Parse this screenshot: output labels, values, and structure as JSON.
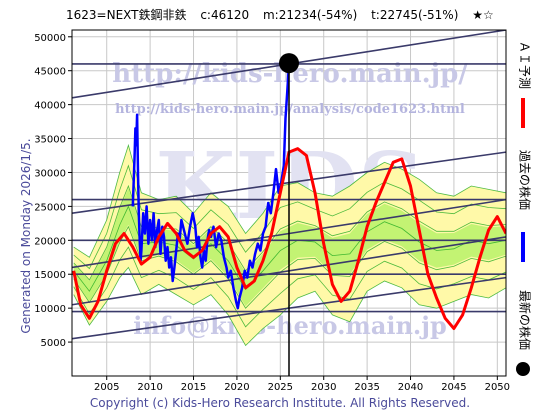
{
  "header": {
    "code_name": "1623=NEXT鉄鋼非鉄",
    "c": "c:46120",
    "m": "m:21234(-54%)",
    "t": "t:22745(-51%)",
    "stars": "★☆"
  },
  "side_label": "Generated on Monday 2026/1/5.",
  "footer": "Copyright (c) Kids-Hero Research Institute. All Rights Reserved.",
  "watermarks": {
    "top": "http://kids-hero.main.jp/",
    "analysis": "http://kids-hero.main.jp/analysis/code1623.html",
    "center": "KIDS",
    "email": "info@kids-hero.main.jp"
  },
  "legend": [
    {
      "label": "ＡＩ予測",
      "color": "#ff0000"
    },
    {
      "label": "過去の株価",
      "color": "#0000ff"
    },
    {
      "label": "最新の株価",
      "color": "#000000"
    }
  ],
  "colors": {
    "ai": "#ff0000",
    "past": "#0000ff",
    "latest": "#000000",
    "band_fill_green": "#b8f26a",
    "band_fill_yellow": "#fff9a8",
    "band_line": "#22aa22",
    "channel": "#3a3a6a"
  },
  "chart_data": {
    "type": "line",
    "xlim": [
      2001,
      2051
    ],
    "ylim": [
      0,
      51000
    ],
    "x_ticks": [
      2005,
      2010,
      2015,
      2020,
      2025,
      2030,
      2035,
      2040,
      2045,
      2050
    ],
    "y_ticks": [
      5000,
      10000,
      15000,
      20000,
      25000,
      30000,
      35000,
      40000,
      45000,
      50000
    ],
    "grid": true,
    "latest_point": {
      "x": 2026.0,
      "y": 46120
    },
    "past_price": [
      [
        2008.0,
        25000
      ],
      [
        2008.2,
        32000
      ],
      [
        2008.3,
        36500
      ],
      [
        2008.4,
        34000
      ],
      [
        2008.5,
        38500
      ],
      [
        2008.6,
        30000
      ],
      [
        2008.7,
        24000
      ],
      [
        2008.8,
        20000
      ],
      [
        2008.9,
        17000
      ],
      [
        2009.0,
        18500
      ],
      [
        2009.2,
        24000
      ],
      [
        2009.4,
        21000
      ],
      [
        2009.6,
        25000
      ],
      [
        2009.8,
        19500
      ],
      [
        2010.0,
        23000
      ],
      [
        2010.2,
        20000
      ],
      [
        2010.4,
        24000
      ],
      [
        2010.6,
        19000
      ],
      [
        2010.8,
        21500
      ],
      [
        2011.0,
        23000
      ],
      [
        2011.2,
        18000
      ],
      [
        2011.4,
        22000
      ],
      [
        2011.6,
        20500
      ],
      [
        2011.8,
        17000
      ],
      [
        2012.0,
        19000
      ],
      [
        2012.2,
        16000
      ],
      [
        2012.4,
        17500
      ],
      [
        2012.6,
        14000
      ],
      [
        2012.8,
        16000
      ],
      [
        2013.0,
        18500
      ],
      [
        2013.2,
        21000
      ],
      [
        2013.4,
        20000
      ],
      [
        2013.6,
        23000
      ],
      [
        2013.8,
        22000
      ],
      [
        2014.0,
        21000
      ],
      [
        2014.3,
        19500
      ],
      [
        2014.6,
        22000
      ],
      [
        2014.9,
        24000
      ],
      [
        2015.2,
        22000
      ],
      [
        2015.4,
        19000
      ],
      [
        2015.6,
        20500
      ],
      [
        2015.8,
        17500
      ],
      [
        2016.0,
        16000
      ],
      [
        2016.2,
        18500
      ],
      [
        2016.4,
        17000
      ],
      [
        2016.6,
        20000
      ],
      [
        2016.8,
        21500
      ],
      [
        2017.0,
        20500
      ],
      [
        2017.3,
        22000
      ],
      [
        2017.6,
        19000
      ],
      [
        2017.9,
        21000
      ],
      [
        2018.2,
        20000
      ],
      [
        2018.5,
        17500
      ],
      [
        2018.8,
        16000
      ],
      [
        2019.0,
        14500
      ],
      [
        2019.3,
        15500
      ],
      [
        2019.6,
        13000
      ],
      [
        2019.9,
        11000
      ],
      [
        2020.1,
        10000
      ],
      [
        2020.3,
        11500
      ],
      [
        2020.6,
        13000
      ],
      [
        2020.9,
        15500
      ],
      [
        2021.2,
        14500
      ],
      [
        2021.5,
        17000
      ],
      [
        2021.8,
        16000
      ],
      [
        2022.1,
        18000
      ],
      [
        2022.4,
        19500
      ],
      [
        2022.7,
        18500
      ],
      [
        2023.0,
        21000
      ],
      [
        2023.3,
        22000
      ],
      [
        2023.6,
        25500
      ],
      [
        2023.9,
        24000
      ],
      [
        2024.2,
        27000
      ],
      [
        2024.5,
        30500
      ],
      [
        2024.8,
        27000
      ],
      [
        2025.1,
        28500
      ],
      [
        2025.4,
        31000
      ],
      [
        2025.6,
        38000
      ],
      [
        2025.8,
        42000
      ],
      [
        2026.0,
        46120
      ]
    ],
    "ai_forecast": [
      [
        2001.2,
        15500
      ],
      [
        2002.0,
        10500
      ],
      [
        2003.0,
        8500
      ],
      [
        2004.0,
        11000
      ],
      [
        2005.0,
        15500
      ],
      [
        2006.0,
        19500
      ],
      [
        2007.0,
        21000
      ],
      [
        2008.0,
        19000
      ],
      [
        2009.0,
        16500
      ],
      [
        2010.0,
        17500
      ],
      [
        2011.0,
        20500
      ],
      [
        2012.0,
        22500
      ],
      [
        2013.0,
        21000
      ],
      [
        2014.0,
        18500
      ],
      [
        2015.0,
        17500
      ],
      [
        2016.0,
        18500
      ],
      [
        2017.0,
        21000
      ],
      [
        2018.0,
        22000
      ],
      [
        2019.0,
        20500
      ],
      [
        2020.0,
        16000
      ],
      [
        2021.0,
        13000
      ],
      [
        2022.0,
        14000
      ],
      [
        2023.0,
        17000
      ],
      [
        2024.0,
        21000
      ],
      [
        2025.0,
        27000
      ],
      [
        2026.0,
        33000
      ],
      [
        2027.0,
        33500
      ],
      [
        2028.0,
        32500
      ],
      [
        2029.0,
        27000
      ],
      [
        2030.0,
        19500
      ],
      [
        2031.0,
        13500
      ],
      [
        2032.0,
        11000
      ],
      [
        2033.0,
        12500
      ],
      [
        2034.0,
        17000
      ],
      [
        2035.0,
        22000
      ],
      [
        2036.0,
        25500
      ],
      [
        2037.0,
        28500
      ],
      [
        2038.0,
        31500
      ],
      [
        2039.0,
        32000
      ],
      [
        2040.0,
        28000
      ],
      [
        2041.0,
        21500
      ],
      [
        2042.0,
        15000
      ],
      [
        2043.0,
        11500
      ],
      [
        2044.0,
        8500
      ],
      [
        2045.0,
        7000
      ],
      [
        2046.0,
        9000
      ],
      [
        2047.0,
        13000
      ],
      [
        2048.0,
        17500
      ],
      [
        2049.0,
        21500
      ],
      [
        2050.0,
        23500
      ],
      [
        2051.0,
        21000
      ]
    ],
    "band_upper": [
      [
        2001.2,
        19000
      ],
      [
        2003.0,
        17500
      ],
      [
        2005.0,
        23000
      ],
      [
        2006.5,
        30000
      ],
      [
        2007.5,
        34000
      ],
      [
        2009.0,
        27000
      ],
      [
        2011.0,
        26000
      ],
      [
        2013.0,
        26500
      ],
      [
        2015.0,
        24000
      ],
      [
        2017.0,
        27000
      ],
      [
        2019.0,
        25000
      ],
      [
        2021.0,
        21000
      ],
      [
        2023.0,
        24000
      ],
      [
        2025.0,
        28000
      ],
      [
        2027.0,
        28500
      ],
      [
        2029.0,
        27000
      ],
      [
        2031.0,
        26500
      ],
      [
        2033.0,
        28000
      ],
      [
        2035.0,
        30000
      ],
      [
        2037.0,
        31500
      ],
      [
        2039.0,
        30500
      ],
      [
        2041.0,
        29000
      ],
      [
        2043.0,
        27000
      ],
      [
        2045.0,
        26500
      ],
      [
        2047.0,
        28000
      ],
      [
        2049.0,
        27500
      ],
      [
        2051.0,
        27000
      ]
    ],
    "band_lower": [
      [
        2001.2,
        12000
      ],
      [
        2003.0,
        7500
      ],
      [
        2005.0,
        11000
      ],
      [
        2006.5,
        14500
      ],
      [
        2007.5,
        16000
      ],
      [
        2009.0,
        12000
      ],
      [
        2011.0,
        13500
      ],
      [
        2013.0,
        12000
      ],
      [
        2015.0,
        10500
      ],
      [
        2017.0,
        12000
      ],
      [
        2019.0,
        9000
      ],
      [
        2021.0,
        4500
      ],
      [
        2023.0,
        7000
      ],
      [
        2025.0,
        9000
      ],
      [
        2027.0,
        11500
      ],
      [
        2029.0,
        12500
      ],
      [
        2031.0,
        9000
      ],
      [
        2033.0,
        8000
      ],
      [
        2035.0,
        12500
      ],
      [
        2037.0,
        14000
      ],
      [
        2039.0,
        13000
      ],
      [
        2041.0,
        10500
      ],
      [
        2043.0,
        10000
      ],
      [
        2045.0,
        11000
      ],
      [
        2047.0,
        12000
      ],
      [
        2049.0,
        11500
      ],
      [
        2051.0,
        13000
      ]
    ],
    "channel_lines": [
      [
        [
          2001.0,
          41000
        ],
        [
          2051.0,
          51000
        ]
      ],
      [
        [
          2001.0,
          46000
        ],
        [
          2051.0,
          46000
        ]
      ],
      [
        [
          2001.0,
          24000
        ],
        [
          2051.0,
          33000
        ]
      ],
      [
        [
          2001.0,
          26000
        ],
        [
          2051.0,
          26000
        ]
      ],
      [
        [
          2001.0,
          20000
        ],
        [
          2051.0,
          20000
        ]
      ],
      [
        [
          2001.0,
          16000
        ],
        [
          2051.0,
          26000
        ]
      ],
      [
        [
          2001.0,
          15000
        ],
        [
          2051.0,
          15000
        ]
      ],
      [
        [
          2001.0,
          10500
        ],
        [
          2051.0,
          20500
        ]
      ],
      [
        [
          2001.0,
          9500
        ],
        [
          2051.0,
          9500
        ]
      ],
      [
        [
          2001.0,
          5500
        ],
        [
          2051.0,
          14500
        ]
      ]
    ]
  }
}
